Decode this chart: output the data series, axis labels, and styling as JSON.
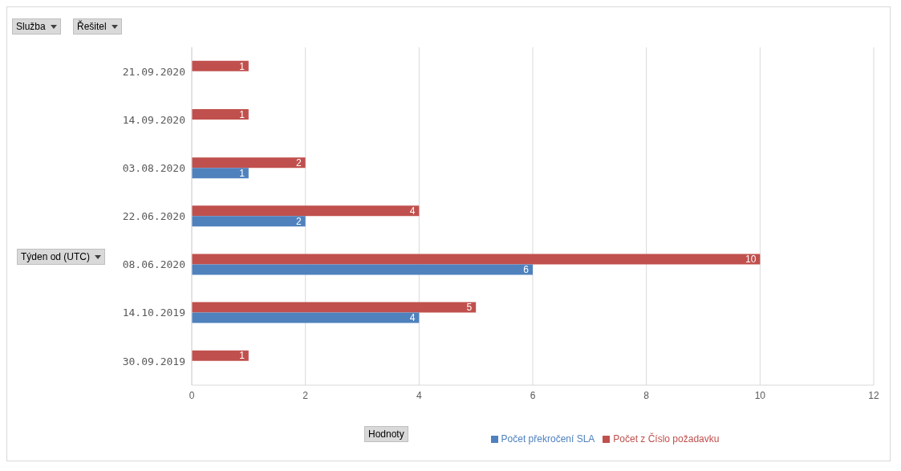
{
  "chart_data": {
    "type": "bar",
    "orientation": "horizontal",
    "categories": [
      "21.09.2020",
      "14.09.2020",
      "03.08.2020",
      "22.06.2020",
      "08.06.2020",
      "14.10.2019",
      "30.09.2019"
    ],
    "series": [
      {
        "name": "Počet z Číslo požadavku",
        "color": "#c0504d",
        "values": [
          1,
          1,
          2,
          4,
          10,
          5,
          1
        ]
      },
      {
        "name": "Počet překročení SLA",
        "color": "#4f81bd",
        "values": [
          null,
          null,
          1,
          2,
          6,
          4,
          null
        ]
      }
    ],
    "xlim": [
      0,
      12
    ],
    "xticks": [
      0,
      2,
      4,
      6,
      8,
      10,
      12
    ],
    "grid": "x",
    "legend": "bottom",
    "data_labels": true,
    "annotations": [
      "Služba",
      "Řešitel",
      "Týden od (UTC)",
      "Hodnoty"
    ]
  }
}
